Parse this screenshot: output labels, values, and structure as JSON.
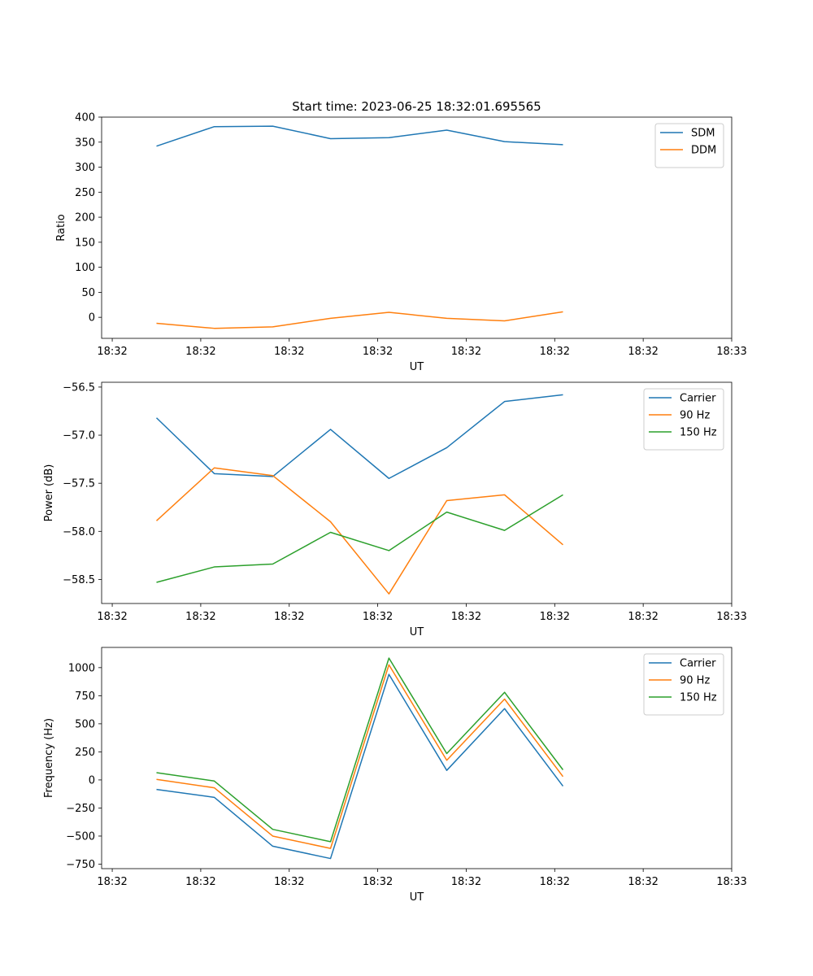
{
  "chart_data": [
    {
      "type": "line",
      "title": "Start time: 2023-06-25 18:32:01.695565",
      "xlabel": "UT",
      "ylabel": "Ratio",
      "x_tick_labels": [
        "18:32",
        "18:32",
        "18:32",
        "18:32",
        "18:32",
        "18:32",
        "18:32",
        "18:33"
      ],
      "x_tick_positions": [
        0,
        1.5,
        3,
        4.5,
        6,
        7.5,
        9,
        10.5
      ],
      "xlim": [
        -0.18,
        10.5
      ],
      "ylim": [
        -42,
        400
      ],
      "y_ticks": [
        0,
        50,
        100,
        150,
        200,
        250,
        300,
        350,
        400
      ],
      "y_tick_labels": [
        "0",
        "50",
        "100",
        "150",
        "200",
        "250",
        "300",
        "350",
        "400"
      ],
      "x": [
        0.75,
        1.73,
        2.72,
        3.7,
        4.69,
        5.67,
        6.65,
        7.64
      ],
      "series": [
        {
          "name": "SDM",
          "color": "#1f77b4",
          "values": [
            342,
            381,
            382,
            357,
            359,
            374,
            351,
            345
          ]
        },
        {
          "name": "DDM",
          "color": "#ff7f0e",
          "values": [
            -12,
            -22,
            -19,
            -2,
            10,
            -2,
            -7,
            11
          ]
        }
      ],
      "legend": "top-right",
      "grid": false
    },
    {
      "type": "line",
      "title": "",
      "xlabel": "UT",
      "ylabel": "Power (dB)",
      "x_tick_labels": [
        "18:32",
        "18:32",
        "18:32",
        "18:32",
        "18:32",
        "18:32",
        "18:32",
        "18:33"
      ],
      "x_tick_positions": [
        0,
        1.5,
        3,
        4.5,
        6,
        7.5,
        9,
        10.5
      ],
      "xlim": [
        -0.18,
        10.5
      ],
      "ylim": [
        -58.75,
        -56.45
      ],
      "y_ticks": [
        -58.5,
        -58.0,
        -57.5,
        -57.0,
        -56.5
      ],
      "y_tick_labels": [
        "−58.5",
        "−58.0",
        "−57.5",
        "−57.0",
        "−56.5"
      ],
      "x": [
        0.75,
        1.73,
        2.72,
        3.7,
        4.69,
        5.67,
        6.65,
        7.64
      ],
      "series": [
        {
          "name": "Carrier",
          "color": "#1f77b4",
          "values": [
            -56.82,
            -57.4,
            -57.43,
            -56.94,
            -57.45,
            -57.13,
            -56.65,
            -56.58
          ]
        },
        {
          "name": "90 Hz",
          "color": "#ff7f0e",
          "values": [
            -57.89,
            -57.34,
            -57.42,
            -57.9,
            -58.65,
            -57.68,
            -57.62,
            -58.14
          ]
        },
        {
          "name": "150 Hz",
          "color": "#2ca02c",
          "values": [
            -58.53,
            -58.37,
            -58.34,
            -58.01,
            -58.2,
            -57.8,
            -57.99,
            -57.62
          ]
        }
      ],
      "legend": "top-right",
      "grid": false
    },
    {
      "type": "line",
      "title": "",
      "xlabel": "UT",
      "ylabel": "Frequency (Hz)",
      "x_tick_labels": [
        "18:32",
        "18:32",
        "18:32",
        "18:32",
        "18:32",
        "18:32",
        "18:32",
        "18:33"
      ],
      "x_tick_positions": [
        0,
        1.5,
        3,
        4.5,
        6,
        7.5,
        9,
        10.5
      ],
      "xlim": [
        -0.18,
        10.5
      ],
      "ylim": [
        -790,
        1180
      ],
      "y_ticks": [
        -750,
        -500,
        -250,
        0,
        250,
        500,
        750,
        1000
      ],
      "y_tick_labels": [
        "−750",
        "−500",
        "−250",
        "0",
        "250",
        "500",
        "750",
        "1000"
      ],
      "x": [
        0.75,
        1.73,
        2.72,
        3.7,
        4.69,
        5.67,
        6.65,
        7.64
      ],
      "series": [
        {
          "name": "Carrier",
          "color": "#1f77b4",
          "values": [
            -85,
            -155,
            -590,
            -700,
            940,
            85,
            635,
            -55
          ]
        },
        {
          "name": "90 Hz",
          "color": "#ff7f0e",
          "values": [
            5,
            -70,
            -500,
            -610,
            1025,
            175,
            720,
            30
          ]
        },
        {
          "name": "150 Hz",
          "color": "#2ca02c",
          "values": [
            65,
            -10,
            -440,
            -550,
            1085,
            235,
            780,
            90
          ]
        }
      ],
      "legend": "top-right",
      "grid": false
    }
  ]
}
